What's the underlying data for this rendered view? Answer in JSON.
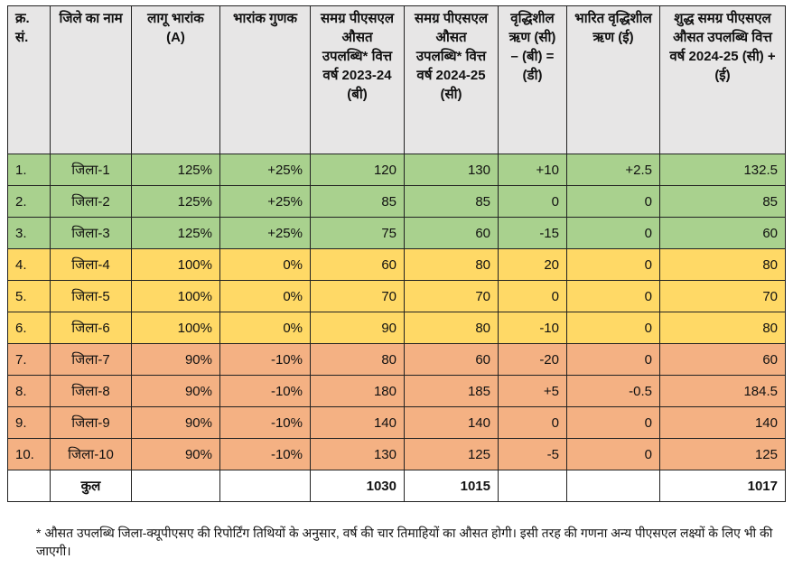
{
  "headers": [
    "क्र. सं.",
    "जिले का नाम",
    "लागू भारांक (A)",
    "भारांक गुणक",
    "समग्र पीएसएल औसत उपलब्धि* वित्त वर्ष 2023-24 (बी)",
    "समग्र पीएसएल औसत उपलब्धि* वित्त वर्ष 2024-25 (सी)",
    "वृद्धिशील ऋण (सी) – (बी) = (डी)",
    "भारित वृद्धिशील ऋण (ई)",
    "शुद्ध समग्र पीएसएल औसत उपलब्धि वित्त वर्ष 2024-25 (सी) + (ई)"
  ],
  "rows": [
    [
      "1.",
      "जिला-1",
      "125%",
      "+25%",
      "120",
      "130",
      "+10",
      "+2.5",
      "132.5"
    ],
    [
      "2.",
      "जिला-2",
      "125%",
      "+25%",
      "85",
      "85",
      "0",
      "0",
      "85"
    ],
    [
      "3.",
      "जिला-3",
      "125%",
      "+25%",
      "75",
      "60",
      "-15",
      "0",
      "60"
    ],
    [
      "4.",
      "जिला-4",
      "100%",
      "0%",
      "60",
      "80",
      "20",
      "0",
      "80"
    ],
    [
      "5.",
      "जिला-5",
      "100%",
      "0%",
      "70",
      "70",
      "0",
      "0",
      "70"
    ],
    [
      "6.",
      "जिला-6",
      "100%",
      "0%",
      "90",
      "80",
      "-10",
      "0",
      "80"
    ],
    [
      "7.",
      "जिला-7",
      "90%",
      "-10%",
      "80",
      "60",
      "-20",
      "0",
      "60"
    ],
    [
      "8.",
      "जिला-8",
      "90%",
      "-10%",
      "180",
      "185",
      "+5",
      "-0.5",
      "184.5"
    ],
    [
      "9.",
      "जिला-9",
      "90%",
      "-10%",
      "140",
      "140",
      "0",
      "0",
      "140"
    ],
    [
      "10.",
      "जिला-10",
      "90%",
      "-10%",
      "130",
      "125",
      "-5",
      "0",
      "125"
    ]
  ],
  "row_groups": [
    "green",
    "green",
    "green",
    "yellow",
    "yellow",
    "yellow",
    "orange",
    "orange",
    "orange",
    "orange"
  ],
  "total": {
    "label": "कुल",
    "b": "1030",
    "c": "1015",
    "net": "1017"
  },
  "footnote": "* औसत उपलब्धि जिला-क्यूपीएसए की रिपोर्टिंग तिथियों के अनुसार, वर्ष की चार तिमाहियों का औसत होगी। इसी तरह की गणना अन्य पीएसएल लक्ष्यों के लिए भी की जाएगी।",
  "colors": {
    "green": "#a9d18e",
    "yellow": "#ffd966",
    "orange": "#f4b183",
    "header": "#e7e6e6"
  }
}
